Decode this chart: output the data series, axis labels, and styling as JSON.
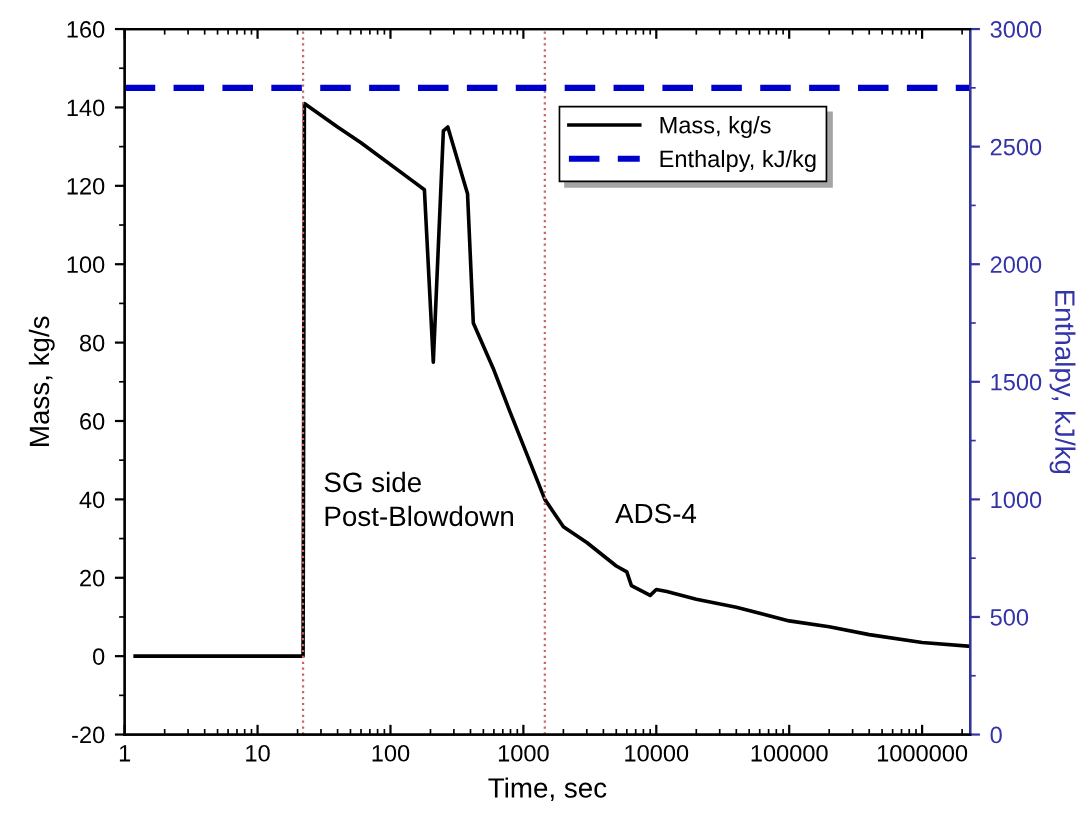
{
  "chart_data": {
    "type": "line",
    "xlabel": "Time, sec",
    "ylabel": "Mass, kg/s",
    "y2label": "Enthalpy, kJ/kg",
    "log": "x",
    "xlim": [
      1,
      2300000
    ],
    "xticks": [
      1,
      10,
      100,
      1000,
      10000,
      100000,
      1000000
    ],
    "ylim": [
      -20,
      160
    ],
    "yticks": [
      -20,
      0,
      20,
      40,
      60,
      80,
      100,
      120,
      140,
      160
    ],
    "y2lim": [
      0,
      3000
    ],
    "y2ticks": [
      0,
      500,
      1000,
      1500,
      2000,
      2500,
      3000
    ],
    "legend": "top right",
    "grid": false,
    "series": [
      {
        "name": "Mass, kg/s",
        "color": "#000000",
        "line_style": "solid",
        "x": [
          1.2,
          22,
          22.5,
          40,
          60,
          150,
          180,
          210,
          250,
          270,
          330,
          380,
          420,
          600,
          800,
          1450,
          2000,
          3000,
          5000,
          6000,
          6500,
          9000,
          10000,
          12000,
          20000,
          40000,
          100000,
          200000,
          400000,
          1000000,
          2300000
        ],
        "values": [
          0,
          0,
          141,
          135,
          131,
          121,
          119,
          75,
          134,
          135,
          125,
          118,
          85,
          73,
          62,
          40,
          33,
          29,
          23,
          21.5,
          18,
          15.5,
          17,
          16.5,
          14.5,
          12.5,
          9,
          7.5,
          5.5,
          3.5,
          2.5
        ]
      },
      {
        "name": "Enthalpy, kJ/kg",
        "color": "#0000cc",
        "line_style": "dashed",
        "axis": "y2",
        "x": [
          1,
          2300000
        ],
        "values": [
          2750,
          2750
        ]
      }
    ],
    "ref_lines": [
      {
        "axis": "x",
        "value": 22,
        "color": "#cc6666",
        "line_style": "dotted"
      },
      {
        "axis": "x",
        "value": 1450,
        "color": "#cc6666",
        "line_style": "dotted"
      }
    ],
    "annotations": [
      "SG side\nPost-Blowdown",
      "ADS-4"
    ]
  }
}
